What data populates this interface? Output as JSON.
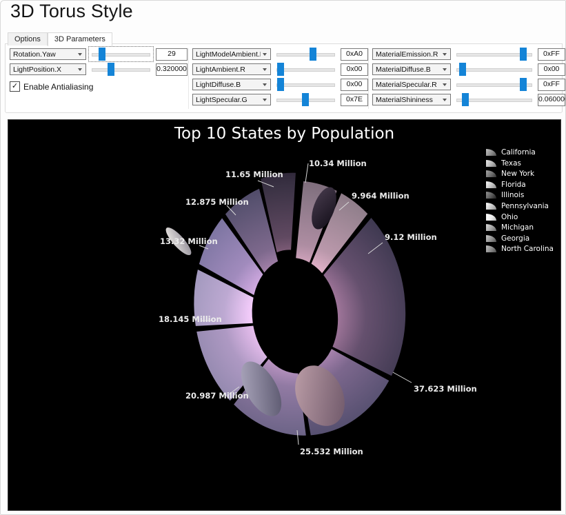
{
  "window": {
    "title": "3D Torus Style"
  },
  "tabs": [
    {
      "label": "Options",
      "active": false
    },
    {
      "label": "3D Parameters",
      "active": true
    }
  ],
  "controls": {
    "left": [
      {
        "param": "Rotation.Yaw",
        "value": "29",
        "slider": 0.15,
        "focused": true
      },
      {
        "param": "LightPosition.X",
        "value": "0.320000",
        "slider": 0.32,
        "focused": false
      }
    ],
    "antialiasing": {
      "label": "Enable Antialiasing",
      "checked": true
    },
    "mid": [
      {
        "param": "LightModelAmbient.R",
        "value": "0xA0",
        "slider": 0.63
      },
      {
        "param": "LightAmbient.R",
        "value": "0x00",
        "slider": 0.04
      },
      {
        "param": "LightDiffuse.B",
        "value": "0x00",
        "slider": 0.04
      },
      {
        "param": "LightSpecular.G",
        "value": "0x7E",
        "slider": 0.49
      }
    ],
    "right": [
      {
        "param": "MaterialEmission.R",
        "value": "0xFF",
        "slider": 0.9
      },
      {
        "param": "MaterialDiffuse.B",
        "value": "0x00",
        "slider": 0.06
      },
      {
        "param": "MaterialSpecular.R",
        "value": "0xFF",
        "slider": 0.9
      },
      {
        "param": "MaterialShininess",
        "value": "0.060000",
        "slider": 0.1
      }
    ]
  },
  "chart_data": {
    "type": "pie",
    "variant": "3d-torus-doughnut",
    "title": "Top 10 States by Population",
    "unit": "Million",
    "background": "#000000",
    "legend_position": "right",
    "start_angle": -14,
    "tilt_rotation_deg": -6,
    "categories": [
      "California",
      "Texas",
      "New York",
      "Florida",
      "Illinois",
      "Pennsylvania",
      "Ohio",
      "Michigan",
      "Georgia",
      "North Carolina"
    ],
    "values": [
      37.623,
      25.532,
      20.987,
      18.145,
      13.32,
      12.875,
      11.65,
      10.34,
      9.964,
      9.12
    ],
    "segments": [
      {
        "name": "Michigan",
        "value": 10.34,
        "label_text": "10.34 Million",
        "color": "#3a3244",
        "explode": [
          -3,
          -12
        ]
      },
      {
        "name": "Georgia",
        "value": 9.964,
        "label_text": "9.964 Million",
        "color": "#887685"
      },
      {
        "name": "North Carolina",
        "value": 9.12,
        "label_text": "9.12 Million",
        "color": "#94818e"
      },
      {
        "name": "California",
        "value": 37.623,
        "label_text": "37.623 Million",
        "color": "#3f3951"
      },
      {
        "name": "Texas",
        "value": 25.532,
        "label_text": "25.532 Million",
        "color": "#565070"
      },
      {
        "name": "New York",
        "value": 20.987,
        "label_text": "20.987 Million",
        "color": "#6b6386"
      },
      {
        "name": "Florida",
        "value": 18.145,
        "label_text": "18.145 Million",
        "color": "#8882a6"
      },
      {
        "name": "Illinois",
        "value": 13.32,
        "label_text": "13.32 Million",
        "color": "#9792b5"
      },
      {
        "name": "Pennsylvania",
        "value": 12.875,
        "label_text": "12.875 Million",
        "color": "#7b74a0"
      },
      {
        "name": "Ohio",
        "value": 11.65,
        "label_text": "11.65 Million",
        "color": "#585270"
      }
    ]
  },
  "legend": {
    "items": [
      {
        "label": "California",
        "swatch": "#8c8c8c"
      },
      {
        "label": "Texas",
        "swatch": "#b5b5b5"
      },
      {
        "label": "New York",
        "swatch": "#6f6f6f"
      },
      {
        "label": "Florida",
        "swatch": "#c4c4c4"
      },
      {
        "label": "Illinois",
        "swatch": "#5a5a5a"
      },
      {
        "label": "Pennsylvania",
        "swatch": "#c9c9c9"
      },
      {
        "label": "Ohio",
        "swatch": "#efefef"
      },
      {
        "label": "Michigan",
        "swatch": "#a3a3a3"
      },
      {
        "label": "Georgia",
        "swatch": "#909090"
      },
      {
        "label": "North Carolina",
        "swatch": "#8a8a8a"
      }
    ]
  }
}
